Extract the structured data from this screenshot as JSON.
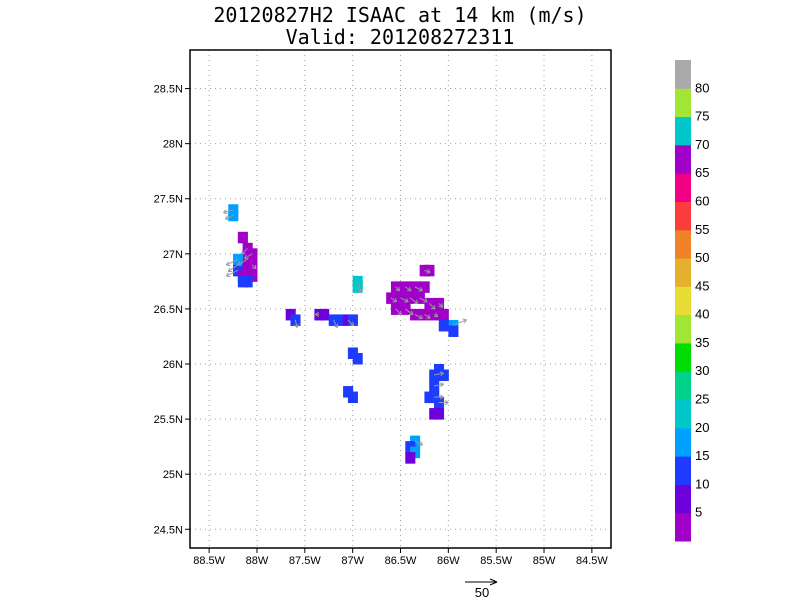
{
  "chart_data": {
    "type": "heatmap",
    "title": "20120827H2 ISAAC at 14 km (m/s)",
    "subtitle": "Valid: 201208272311",
    "x_ticks": [
      "88.5W",
      "88W",
      "87.5W",
      "87W",
      "86.5W",
      "86W",
      "85.5W",
      "85W",
      "84.5W"
    ],
    "x_tick_values": [
      -88.5,
      -88.0,
      -87.5,
      -87.0,
      -86.5,
      -86.0,
      -85.5,
      -85.0,
      -84.5
    ],
    "y_ticks": [
      "24.5N",
      "25N",
      "25.5N",
      "26N",
      "26.5N",
      "27N",
      "27.5N",
      "28N",
      "28.5N"
    ],
    "y_tick_values": [
      24.5,
      25.0,
      25.5,
      26.0,
      26.5,
      27.0,
      27.5,
      28.0,
      28.5
    ],
    "xlim": [
      -88.7,
      -84.3
    ],
    "ylim": [
      24.33,
      28.85
    ],
    "grid": true,
    "colorbar": {
      "tick_labels": [
        "5",
        "10",
        "15",
        "20",
        "25",
        "30",
        "35",
        "40",
        "45",
        "50",
        "55",
        "60",
        "65",
        "70",
        "75",
        "80"
      ],
      "bins": [
        {
          "from": 0,
          "to": 5,
          "color": "#a000c8"
        },
        {
          "from": 5,
          "to": 10,
          "color": "#6e00dc"
        },
        {
          "from": 10,
          "to": 15,
          "color": "#1e3cff"
        },
        {
          "from": 15,
          "to": 20,
          "color": "#00a0ff"
        },
        {
          "from": 20,
          "to": 25,
          "color": "#00c8c8"
        },
        {
          "from": 25,
          "to": 30,
          "color": "#00d28c"
        },
        {
          "from": 30,
          "to": 35,
          "color": "#00dc00"
        },
        {
          "from": 35,
          "to": 40,
          "color": "#a0e632"
        },
        {
          "from": 40,
          "to": 45,
          "color": "#e6dc32"
        },
        {
          "from": 45,
          "to": 50,
          "color": "#e6af2d"
        },
        {
          "from": 50,
          "to": 55,
          "color": "#f08228"
        },
        {
          "from": 55,
          "to": 60,
          "color": "#fa3c3c"
        },
        {
          "from": 60,
          "to": 65,
          "color": "#f00082"
        },
        {
          "from": 65,
          "to": 70,
          "color": "#a000c8"
        },
        {
          "from": 70,
          "to": 75,
          "color": "#00c8c8"
        },
        {
          "from": 75,
          "to": 80,
          "color": "#a0e632"
        },
        {
          "from": 80,
          "to": 85,
          "color": "#aaaaaa"
        }
      ]
    },
    "reference_vector": {
      "label": "50",
      "value": 50
    },
    "cells": [
      {
        "lon": -88.25,
        "lat": 27.4,
        "value": 17,
        "u": -10,
        "v": -3
      },
      {
        "lon": -88.25,
        "lat": 27.35,
        "value": 17,
        "u": -8,
        "v": -4
      },
      {
        "lon": -88.15,
        "lat": 27.15,
        "value": 4,
        "u": 0,
        "v": 0
      },
      {
        "lon": -88.1,
        "lat": 27.05,
        "value": 3,
        "u": -6,
        "v": -6
      },
      {
        "lon": -88.05,
        "lat": 27.0,
        "value": 4,
        "u": -8,
        "v": -5
      },
      {
        "lon": -88.1,
        "lat": 26.95,
        "value": 4,
        "u": -10,
        "v": -6
      },
      {
        "lon": -88.2,
        "lat": 26.95,
        "value": 17,
        "u": -12,
        "v": -6
      },
      {
        "lon": -88.2,
        "lat": 26.9,
        "value": 17,
        "u": -10,
        "v": -7
      },
      {
        "lon": -88.1,
        "lat": 26.9,
        "value": 3,
        "u": 0,
        "v": 0
      },
      {
        "lon": -88.05,
        "lat": 26.9,
        "value": 3,
        "u": 4,
        "v": -4
      },
      {
        "lon": -88.2,
        "lat": 26.85,
        "value": 13,
        "u": -12,
        "v": -6
      },
      {
        "lon": -88.1,
        "lat": 26.85,
        "value": 3,
        "u": 0,
        "v": 0
      },
      {
        "lon": -88.05,
        "lat": 26.8,
        "value": 3,
        "u": 0,
        "v": 0
      },
      {
        "lon": -88.15,
        "lat": 26.8,
        "value": 3,
        "u": 0,
        "v": 0
      },
      {
        "lon": -88.15,
        "lat": 26.75,
        "value": 13,
        "u": 0,
        "v": 0
      },
      {
        "lon": -88.1,
        "lat": 26.75,
        "value": 13,
        "u": 0,
        "v": 0
      },
      {
        "lon": -87.65,
        "lat": 26.45,
        "value": 7,
        "u": 0,
        "v": 0
      },
      {
        "lon": -87.6,
        "lat": 26.4,
        "value": 12,
        "u": 2,
        "v": -8
      },
      {
        "lon": -87.35,
        "lat": 26.45,
        "value": 7,
        "u": -4,
        "v": 0
      },
      {
        "lon": -87.3,
        "lat": 26.45,
        "value": 7,
        "u": 0,
        "v": 0
      },
      {
        "lon": -87.2,
        "lat": 26.4,
        "value": 12,
        "u": 4,
        "v": -8
      },
      {
        "lon": -87.15,
        "lat": 26.4,
        "value": 12,
        "u": 0,
        "v": 0
      },
      {
        "lon": -87.05,
        "lat": 26.4,
        "value": 7,
        "u": 6,
        "v": -6
      },
      {
        "lon": -87.0,
        "lat": 26.4,
        "value": 12,
        "u": 0,
        "v": 0
      },
      {
        "lon": -86.95,
        "lat": 26.75,
        "value": 22,
        "u": 4,
        "v": -12
      },
      {
        "lon": -86.95,
        "lat": 26.7,
        "value": 22,
        "u": 0,
        "v": 0
      },
      {
        "lon": -87.0,
        "lat": 26.1,
        "value": 12,
        "u": 0,
        "v": 0
      },
      {
        "lon": -86.95,
        "lat": 26.05,
        "value": 12,
        "u": 0,
        "v": 0
      },
      {
        "lon": -87.05,
        "lat": 25.75,
        "value": 12,
        "u": 0,
        "v": 0
      },
      {
        "lon": -87.0,
        "lat": 25.7,
        "value": 12,
        "u": 0,
        "v": 0
      },
      {
        "lon": -86.25,
        "lat": 26.85,
        "value": 4,
        "u": 6,
        "v": -2
      },
      {
        "lon": -86.2,
        "lat": 26.85,
        "value": 4,
        "u": 0,
        "v": 0
      },
      {
        "lon": -86.55,
        "lat": 26.7,
        "value": 4,
        "u": 4,
        "v": -4
      },
      {
        "lon": -86.45,
        "lat": 26.7,
        "value": 4,
        "u": 6,
        "v": -4
      },
      {
        "lon": -86.35,
        "lat": 26.7,
        "value": 4,
        "u": 8,
        "v": -4
      },
      {
        "lon": -86.25,
        "lat": 26.7,
        "value": 4,
        "u": 0,
        "v": 0
      },
      {
        "lon": -86.6,
        "lat": 26.6,
        "value": 3,
        "u": 6,
        "v": -4
      },
      {
        "lon": -86.5,
        "lat": 26.6,
        "value": 3,
        "u": 8,
        "v": -4
      },
      {
        "lon": -86.4,
        "lat": 26.6,
        "value": 4,
        "u": 8,
        "v": -6
      },
      {
        "lon": -86.3,
        "lat": 26.6,
        "value": 4,
        "u": 8,
        "v": -4
      },
      {
        "lon": -86.2,
        "lat": 26.55,
        "value": 4,
        "u": 6,
        "v": -6
      },
      {
        "lon": -86.1,
        "lat": 26.55,
        "value": 3,
        "u": 4,
        "v": -4
      },
      {
        "lon": -86.55,
        "lat": 26.5,
        "value": 4,
        "u": 6,
        "v": -6
      },
      {
        "lon": -86.45,
        "lat": 26.5,
        "value": 4,
        "u": 8,
        "v": -6
      },
      {
        "lon": -86.35,
        "lat": 26.45,
        "value": 3,
        "u": 8,
        "v": -4
      },
      {
        "lon": -86.25,
        "lat": 26.45,
        "value": 4,
        "u": 6,
        "v": -4
      },
      {
        "lon": -86.15,
        "lat": 26.45,
        "value": 4,
        "u": 4,
        "v": -2
      },
      {
        "lon": -86.05,
        "lat": 26.45,
        "value": 3,
        "u": 0,
        "v": 0
      },
      {
        "lon": -85.95,
        "lat": 26.35,
        "value": 17,
        "u": 14,
        "v": 6
      },
      {
        "lon": -85.95,
        "lat": 26.3,
        "value": 12,
        "u": 0,
        "v": 0
      },
      {
        "lon": -86.05,
        "lat": 26.35,
        "value": 12,
        "u": 0,
        "v": 0
      },
      {
        "lon": -86.1,
        "lat": 25.95,
        "value": 12,
        "u": 0,
        "v": 0
      },
      {
        "lon": -86.15,
        "lat": 25.9,
        "value": 12,
        "u": 10,
        "v": 2
      },
      {
        "lon": -86.05,
        "lat": 25.9,
        "value": 12,
        "u": 0,
        "v": 0
      },
      {
        "lon": -86.15,
        "lat": 25.8,
        "value": 12,
        "u": 10,
        "v": 2
      },
      {
        "lon": -86.15,
        "lat": 25.7,
        "value": 12,
        "u": 10,
        "v": 0
      },
      {
        "lon": -86.2,
        "lat": 25.7,
        "value": 12,
        "u": 0,
        "v": 0
      },
      {
        "lon": -86.1,
        "lat": 25.65,
        "value": 12,
        "u": 10,
        "v": 0
      },
      {
        "lon": -86.15,
        "lat": 25.55,
        "value": 7,
        "u": 0,
        "v": 0
      },
      {
        "lon": -86.1,
        "lat": 25.55,
        "value": 7,
        "u": 0,
        "v": 0
      },
      {
        "lon": -86.35,
        "lat": 25.3,
        "value": 17,
        "u": 8,
        "v": -4
      },
      {
        "lon": -86.4,
        "lat": 25.25,
        "value": 12,
        "u": 0,
        "v": 0
      },
      {
        "lon": -86.35,
        "lat": 25.2,
        "value": 17,
        "u": 0,
        "v": 0
      },
      {
        "lon": -86.4,
        "lat": 25.15,
        "value": 7,
        "u": 0,
        "v": 0
      }
    ]
  }
}
